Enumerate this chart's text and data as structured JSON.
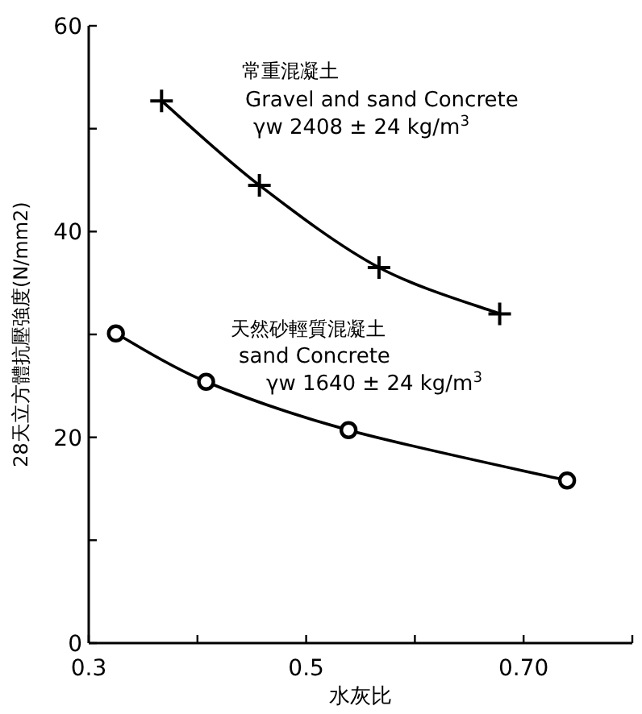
{
  "chart_data": {
    "type": "line",
    "xlabel": "水灰比",
    "ylabel": "28天立方體抗壓強度(N/mm2)",
    "xlim": [
      0.3,
      0.8
    ],
    "ylim": [
      0,
      60
    ],
    "xticks": [
      0.3,
      {
        "value": 0.4,
        "label": null
      },
      0.5,
      {
        "value": 0.6,
        "label": null
      },
      {
        "value": 0.7,
        "label": "0.70"
      },
      {
        "value": 0.8,
        "label": null
      }
    ],
    "yticks": [
      0,
      {
        "value": 10,
        "label": null
      },
      20,
      {
        "value": 30,
        "label": null
      },
      40,
      {
        "value": 50,
        "label": null
      },
      60
    ],
    "grid": false,
    "series": [
      {
        "color": "#000000",
        "marker": "cross",
        "x": [
          0.367,
          0.457,
          0.567,
          0.678
        ],
        "values": [
          52.7,
          44.5,
          36.5,
          32.0
        ]
      },
      {
        "color": "#000000",
        "marker": "circle",
        "x": [
          0.325,
          0.408,
          0.539,
          0.74
        ],
        "values": [
          30.1,
          25.4,
          20.7,
          15.8
        ]
      }
    ],
    "annotations": [
      "常重混凝土",
      "Gravel and sand Concrete",
      "γw 2408 ± 24 kg/m$^{3}$",
      "天然砂輕質混凝土",
      "sand Concrete",
      "γw 1640 ± 24 kg/m$^{3}$"
    ]
  }
}
